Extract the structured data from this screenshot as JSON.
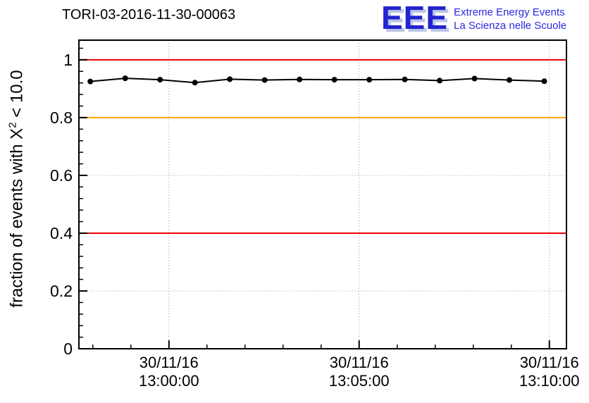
{
  "header": {
    "title": "TORI-03-2016-11-30-00063",
    "logo": {
      "acronym": "EEE",
      "line1": "Extreme Energy Events",
      "line2": "La Scienza nelle Scuole"
    }
  },
  "chart_data": {
    "type": "line",
    "title": "TORI-03-2016-11-30-00063",
    "ylabel": "fraction of events with X^2 < 10.0",
    "ylabel_parts": {
      "prefix": "fraction of events with X",
      "sup": "2",
      "suffix": " < 10.0"
    },
    "ylim": [
      0,
      1.068
    ],
    "ytick_values": [
      0,
      0.2,
      0.4,
      0.6,
      0.8,
      1
    ],
    "ytick_labels": [
      "0",
      "0.2",
      "0.4",
      "0.6",
      "0.8",
      "1"
    ],
    "ytick_minor_step": 0.04,
    "x_axis": {
      "unit": "seconds relative to 13:00:00 on 30/11/16",
      "range_s": [
        -142,
        627
      ],
      "minor_step_s": 60,
      "ticks": [
        {
          "offset_s": 0,
          "label_line1": "30/11/16",
          "label_line2": "13:00:00"
        },
        {
          "offset_s": 300,
          "label_line1": "30/11/16",
          "label_line2": "13:05:00"
        },
        {
          "offset_s": 600,
          "label_line1": "30/11/16",
          "label_line2": "13:10:00"
        }
      ]
    },
    "reference_lines": [
      {
        "y": 1.0,
        "color": "#ee0000"
      },
      {
        "y": 0.8,
        "color": "#ffa500"
      },
      {
        "y": 0.4,
        "color": "#ee0000"
      }
    ],
    "grid": {
      "show": true,
      "color": "#999999",
      "style": "dotted"
    },
    "series": [
      {
        "name": "fraction of events with X^2 < 10.0",
        "color": "#000000",
        "marker": "circle",
        "points": [
          {
            "t_s": -124,
            "y": 0.925
          },
          {
            "t_s": -69,
            "y": 0.936
          },
          {
            "t_s": -14,
            "y": 0.931
          },
          {
            "t_s": 41,
            "y": 0.921
          },
          {
            "t_s": 96,
            "y": 0.933
          },
          {
            "t_s": 151,
            "y": 0.93
          },
          {
            "t_s": 206,
            "y": 0.932
          },
          {
            "t_s": 261,
            "y": 0.931
          },
          {
            "t_s": 316,
            "y": 0.931
          },
          {
            "t_s": 372,
            "y": 0.932
          },
          {
            "t_s": 427,
            "y": 0.928
          },
          {
            "t_s": 482,
            "y": 0.935
          },
          {
            "t_s": 537,
            "y": 0.93
          },
          {
            "t_s": 592,
            "y": 0.926
          }
        ]
      }
    ]
  }
}
